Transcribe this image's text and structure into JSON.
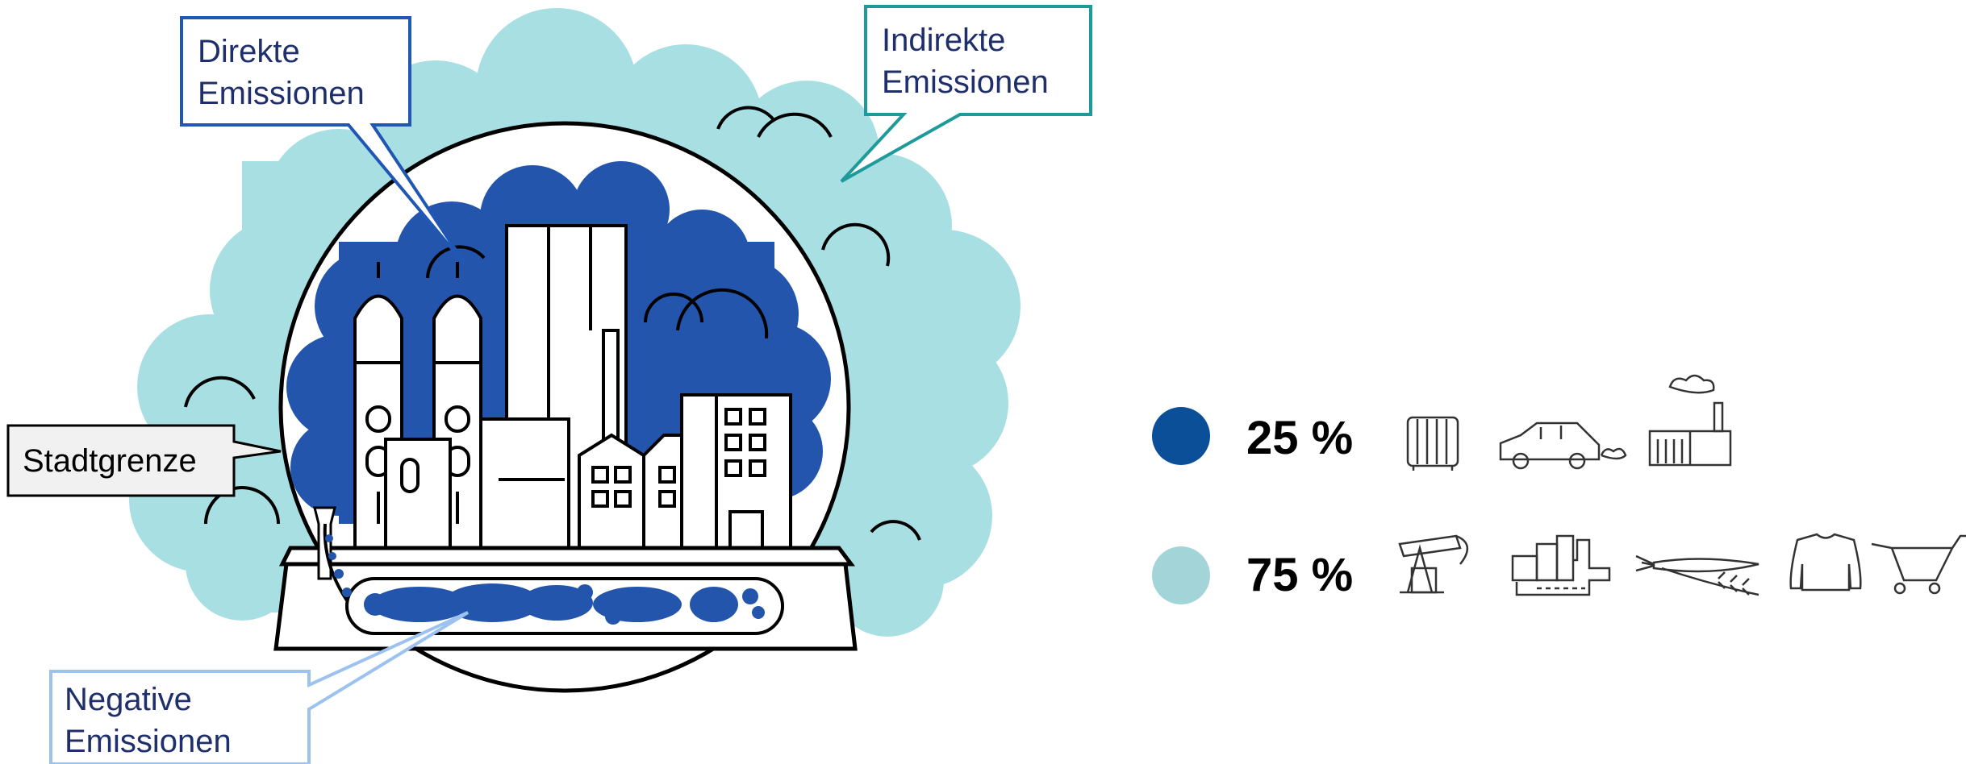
{
  "colors": {
    "direct_blue": "#2355ad",
    "indirect_teal": "#a8dfe3",
    "negative_blue_border": "#9cc3ef",
    "direct_callout_border": "#2057b5",
    "indirect_callout_border": "#1f9a9a",
    "dot_direct": "#0a4f97",
    "dot_indirect": "#a3d4d8",
    "city_border_fill": "#f1f1f1"
  },
  "callouts": {
    "direct": [
      "Direkte",
      "Emissionen"
    ],
    "indirect": [
      "Indirekte",
      "Emissionen"
    ],
    "negative": [
      "Negative",
      "Emissionen"
    ],
    "boundary": "Stadtgrenze"
  },
  "legend": {
    "rows": [
      {
        "percent": "25 %",
        "color": "#0a4f97",
        "icons": [
          "radiator-icon",
          "car-icon",
          "factory-icon"
        ]
      },
      {
        "percent": "75 %",
        "color": "#a3d4d8",
        "icons": [
          "oil-pump-icon",
          "city-road-icon",
          "carrot-wheat-icon",
          "sweater-icon",
          "shopping-cart-icon"
        ]
      }
    ]
  }
}
